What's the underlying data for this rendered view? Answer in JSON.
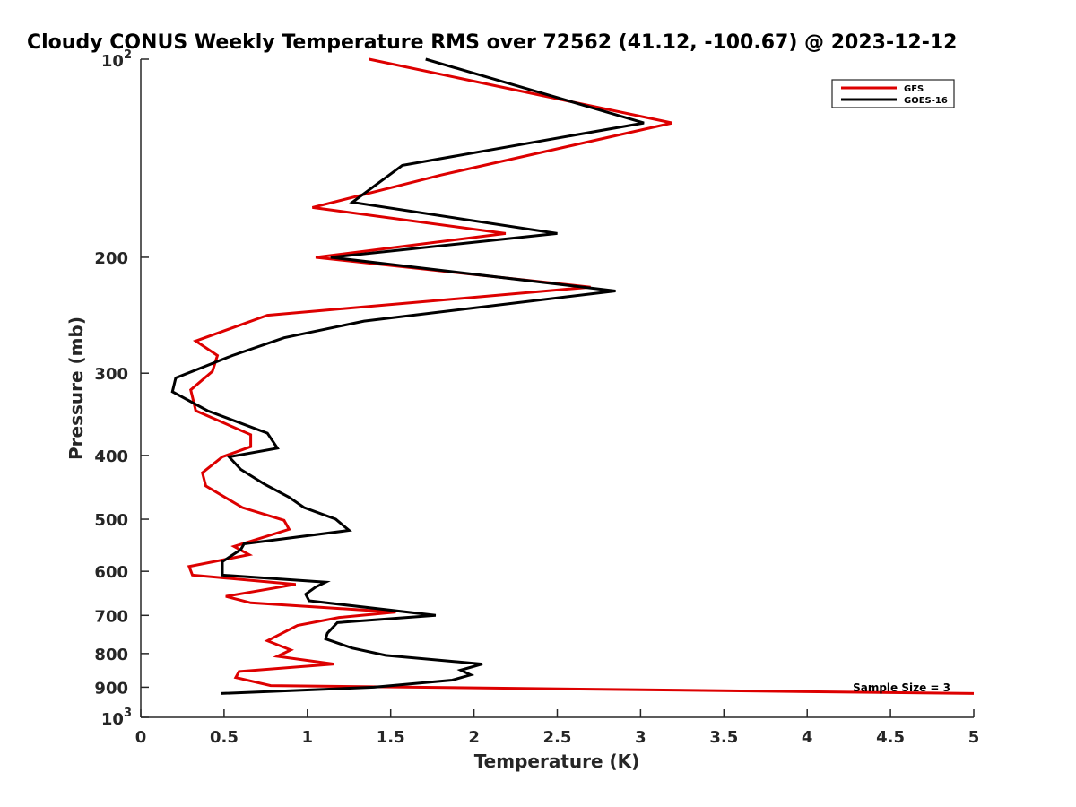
{
  "chart_data": {
    "type": "line",
    "title": "Cloudy CONUS Weekly Temperature RMS over 72562 (41.12, -100.67) @ 2023-12-12",
    "xlabel": "Temperature (K)",
    "ylabel": "Pressure (mb)",
    "xlim": [
      0,
      5
    ],
    "ylim": [
      100,
      1000
    ],
    "y_scale": "log",
    "y_reversed": true,
    "grid": false,
    "legend_position": "top-right",
    "x_ticks": [
      0,
      0.5,
      1,
      1.5,
      2,
      2.5,
      3,
      3.5,
      4,
      4.5,
      5
    ],
    "x_tick_labels": [
      "0",
      "0.5",
      "1",
      "1.5",
      "2",
      "2.5",
      "3",
      "3.5",
      "4",
      "4.5",
      "5"
    ],
    "y_ticks": [
      {
        "value": 100,
        "base": "10",
        "exp": "2"
      },
      {
        "value": 200,
        "label": "200"
      },
      {
        "value": 300,
        "label": "300"
      },
      {
        "value": 400,
        "label": "400"
      },
      {
        "value": 500,
        "label": "500"
      },
      {
        "value": 600,
        "label": "600"
      },
      {
        "value": 700,
        "label": "700"
      },
      {
        "value": 800,
        "label": "800"
      },
      {
        "value": 900,
        "label": "900"
      },
      {
        "value": 1000,
        "base": "10",
        "exp": "3"
      }
    ],
    "annotation": "Sample Size = 3",
    "series": [
      {
        "name": "GFS",
        "color": "#dd0000",
        "points": [
          [
            1.37,
            100
          ],
          [
            3.19,
            125
          ],
          [
            1.8,
            150
          ],
          [
            1.03,
            168
          ],
          [
            2.19,
            184
          ],
          [
            1.05,
            200
          ],
          [
            2.7,
            222
          ],
          [
            0.76,
            245
          ],
          [
            0.33,
            268
          ],
          [
            0.46,
            282
          ],
          [
            0.43,
            298
          ],
          [
            0.3,
            318
          ],
          [
            0.33,
            342
          ],
          [
            0.66,
            372
          ],
          [
            0.66,
            388
          ],
          [
            0.49,
            402
          ],
          [
            0.37,
            425
          ],
          [
            0.39,
            445
          ],
          [
            0.61,
            480
          ],
          [
            0.86,
            502
          ],
          [
            0.89,
            518
          ],
          [
            0.56,
            550
          ],
          [
            0.65,
            566
          ],
          [
            0.29,
            590
          ],
          [
            0.31,
            608
          ],
          [
            0.93,
            628
          ],
          [
            0.51,
            655
          ],
          [
            0.66,
            670
          ],
          [
            1.53,
            692
          ],
          [
            1.19,
            705
          ],
          [
            0.94,
            725
          ],
          [
            0.76,
            765
          ],
          [
            0.9,
            790
          ],
          [
            0.82,
            808
          ],
          [
            1.16,
            830
          ],
          [
            0.59,
            852
          ],
          [
            0.57,
            870
          ],
          [
            0.78,
            895
          ],
          [
            5.0,
            920
          ]
        ]
      },
      {
        "name": "GOES-16",
        "color": "#000000",
        "points": [
          [
            1.71,
            100
          ],
          [
            3.02,
            125
          ],
          [
            1.57,
            145
          ],
          [
            1.27,
            165
          ],
          [
            2.5,
            184
          ],
          [
            1.14,
            200
          ],
          [
            2.85,
            225
          ],
          [
            1.34,
            250
          ],
          [
            0.86,
            265
          ],
          [
            0.55,
            282
          ],
          [
            0.21,
            305
          ],
          [
            0.19,
            320
          ],
          [
            0.4,
            342
          ],
          [
            0.76,
            370
          ],
          [
            0.82,
            390
          ],
          [
            0.53,
            402
          ],
          [
            0.6,
            420
          ],
          [
            0.74,
            442
          ],
          [
            0.89,
            463
          ],
          [
            0.98,
            480
          ],
          [
            1.17,
            500
          ],
          [
            1.25,
            520
          ],
          [
            0.62,
            545
          ],
          [
            0.6,
            556
          ],
          [
            0.49,
            580
          ],
          [
            0.49,
            608
          ],
          [
            1.11,
            623
          ],
          [
            1.05,
            634
          ],
          [
            0.99,
            650
          ],
          [
            1.01,
            665
          ],
          [
            1.77,
            700
          ],
          [
            1.18,
            718
          ],
          [
            1.12,
            745
          ],
          [
            1.11,
            760
          ],
          [
            1.27,
            785
          ],
          [
            1.47,
            805
          ],
          [
            2.05,
            830
          ],
          [
            1.92,
            848
          ],
          [
            1.98,
            862
          ],
          [
            1.87,
            878
          ],
          [
            1.4,
            900
          ],
          [
            0.48,
            920
          ]
        ]
      }
    ]
  }
}
